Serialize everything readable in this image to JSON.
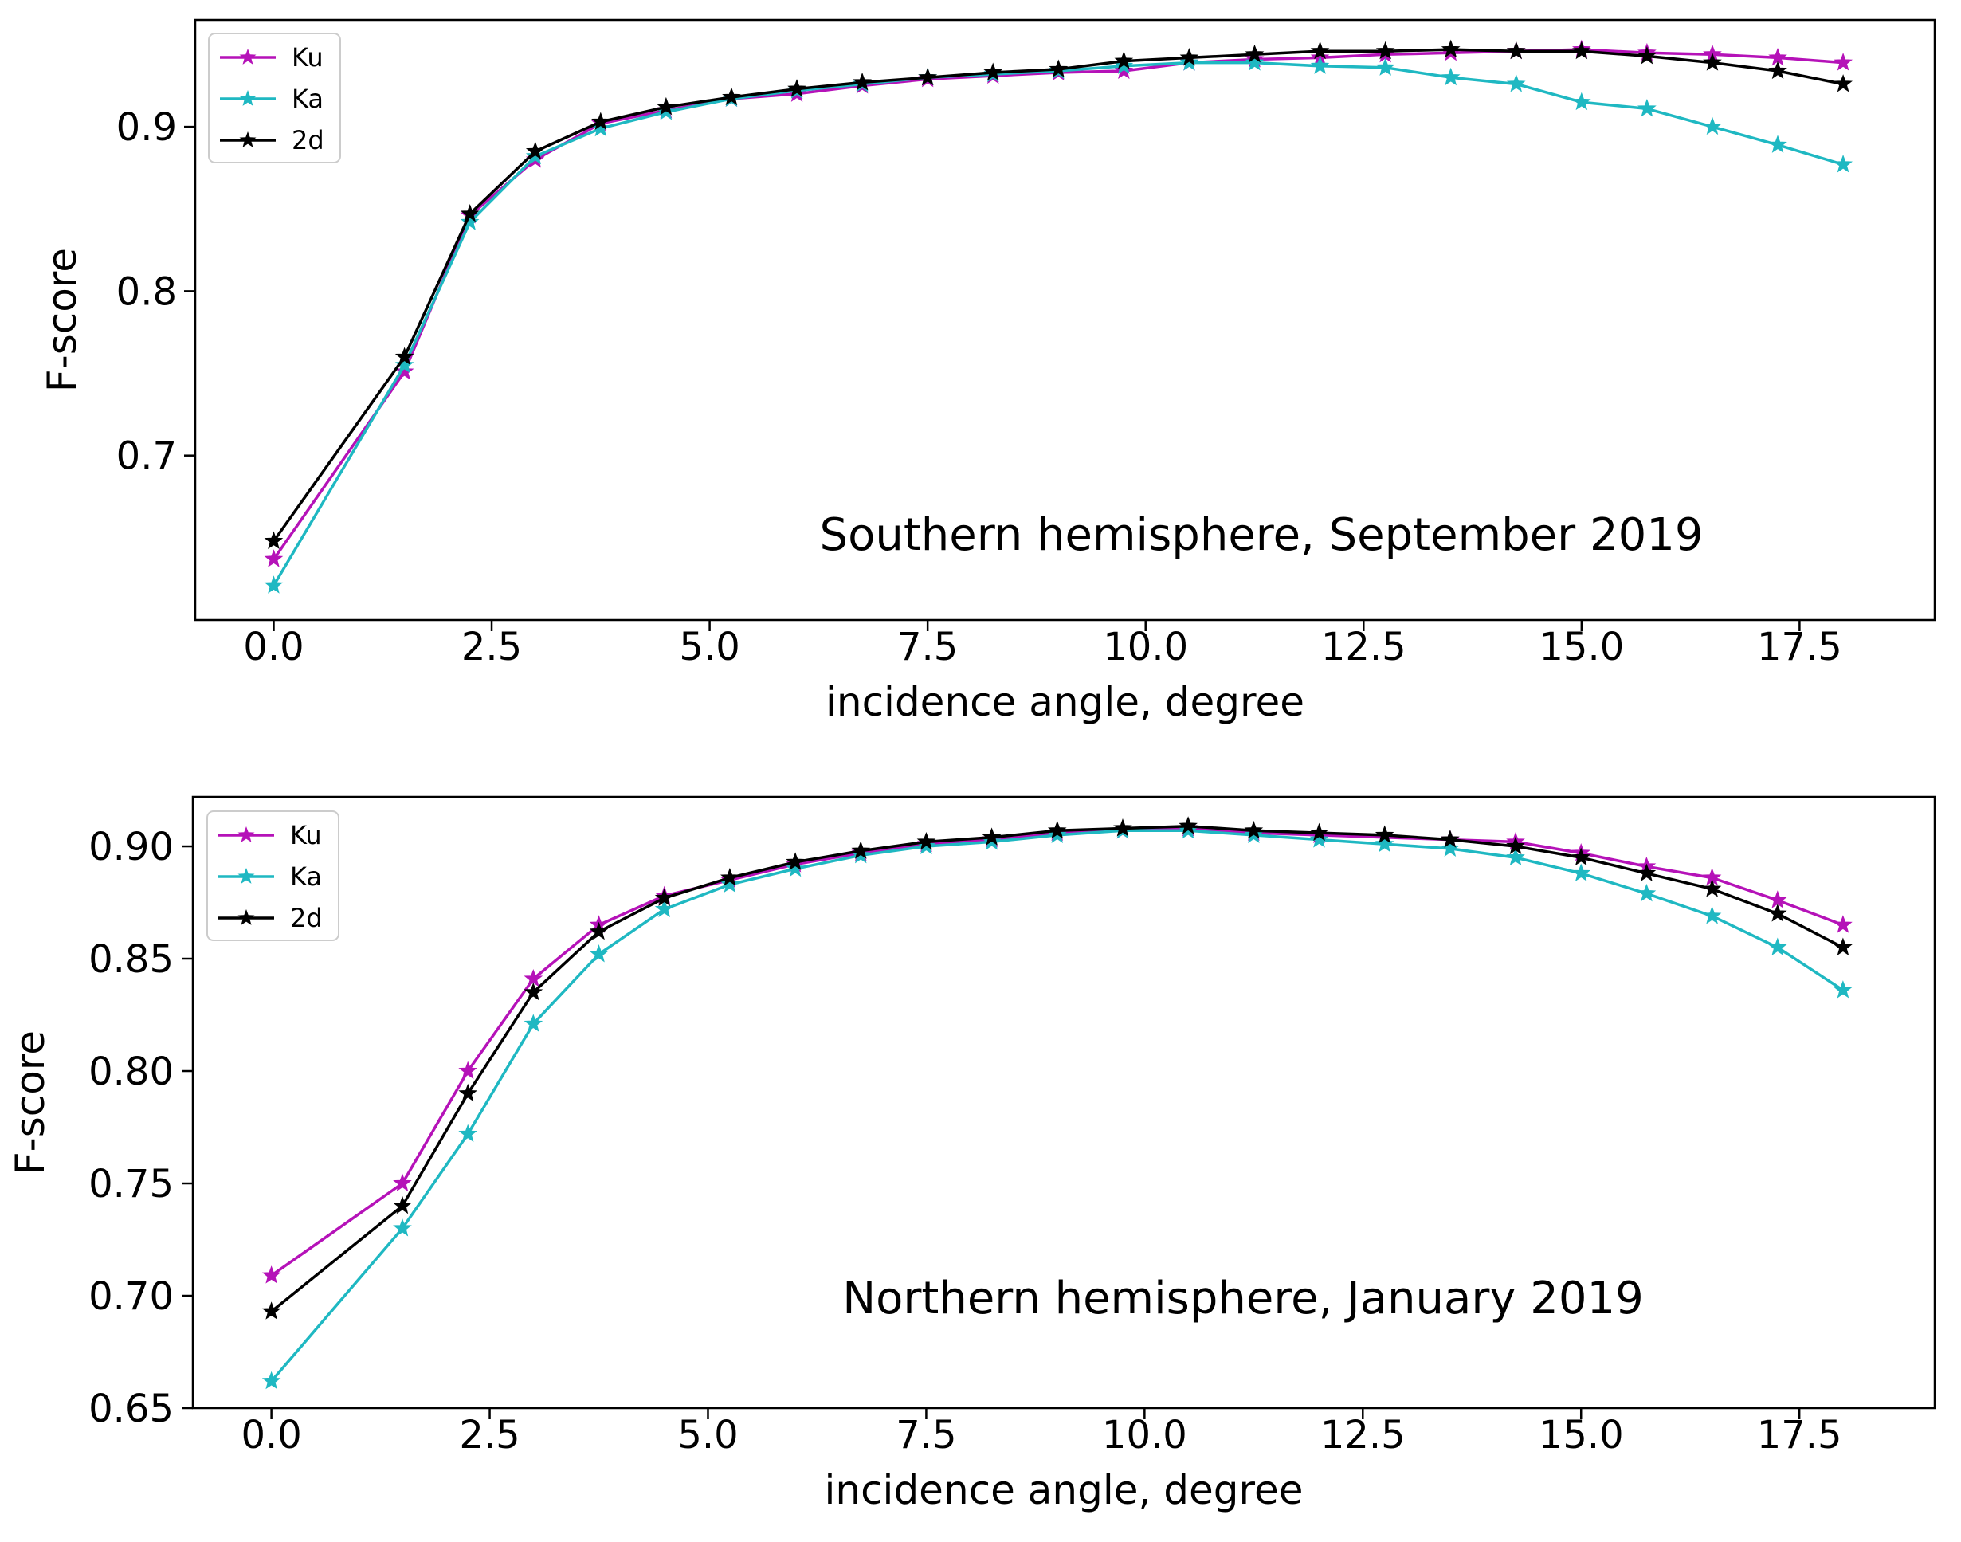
{
  "chart_data": [
    {
      "type": "line",
      "title": "",
      "annotation": "Southern hemisphere, September 2019",
      "xlabel": "incidence angle, degree",
      "ylabel": "F-score",
      "xlim": [
        -0.9,
        19.05
      ],
      "ylim": [
        0.6,
        0.965
      ],
      "xticks": [
        0.0,
        2.5,
        5.0,
        7.5,
        10.0,
        12.5,
        15.0,
        17.5
      ],
      "xtick_labels": [
        "0.0",
        "2.5",
        "5.0",
        "7.5",
        "10.0",
        "12.5",
        "15.0",
        "17.5"
      ],
      "yticks": [
        0.7,
        0.8,
        0.9
      ],
      "ytick_labels": [
        "0.7",
        "0.8",
        "0.9"
      ],
      "legend_position": "upper-left",
      "x": [
        0.0,
        1.5,
        2.25,
        3.0,
        3.75,
        4.5,
        5.25,
        6.0,
        6.75,
        7.5,
        8.25,
        9.0,
        9.75,
        10.5,
        11.25,
        12.0,
        12.75,
        13.5,
        14.25,
        15.0,
        15.75,
        16.5,
        17.25,
        18.0
      ],
      "series": [
        {
          "name": "Ku",
          "color": "#b512b8",
          "values": [
            0.637,
            0.751,
            0.846,
            0.88,
            0.902,
            0.91,
            0.917,
            0.92,
            0.925,
            0.929,
            0.931,
            0.933,
            0.934,
            0.939,
            0.941,
            0.942,
            0.944,
            0.945,
            0.946,
            0.947,
            0.945,
            0.944,
            0.942,
            0.939
          ]
        },
        {
          "name": "Ka",
          "color": "#1fb8c2",
          "values": [
            0.621,
            0.755,
            0.842,
            0.882,
            0.899,
            0.909,
            0.917,
            0.922,
            0.926,
            0.93,
            0.932,
            0.934,
            0.937,
            0.939,
            0.939,
            0.937,
            0.936,
            0.93,
            0.926,
            0.915,
            0.911,
            0.9,
            0.889,
            0.877
          ]
        },
        {
          "name": "2d",
          "color": "#000000",
          "values": [
            0.648,
            0.76,
            0.847,
            0.885,
            0.903,
            0.912,
            0.918,
            0.923,
            0.927,
            0.93,
            0.933,
            0.935,
            0.94,
            0.942,
            0.944,
            0.946,
            0.946,
            0.947,
            0.946,
            0.946,
            0.943,
            0.939,
            0.934,
            0.926
          ]
        }
      ]
    },
    {
      "type": "line",
      "title": "",
      "annotation": "Northern hemisphere, January 2019",
      "xlabel": "incidence angle, degree",
      "ylabel": "F-score",
      "xlim": [
        -0.9,
        19.05
      ],
      "ylim": [
        0.65,
        0.922
      ],
      "xticks": [
        0.0,
        2.5,
        5.0,
        7.5,
        10.0,
        12.5,
        15.0,
        17.5
      ],
      "xtick_labels": [
        "0.0",
        "2.5",
        "5.0",
        "7.5",
        "10.0",
        "12.5",
        "15.0",
        "17.5"
      ],
      "yticks": [
        0.65,
        0.7,
        0.75,
        0.8,
        0.85,
        0.9
      ],
      "ytick_labels": [
        "0.65",
        "0.70",
        "0.75",
        "0.80",
        "0.85",
        "0.90"
      ],
      "legend_position": "upper-left",
      "x": [
        0.0,
        1.5,
        2.25,
        3.0,
        3.75,
        4.5,
        5.25,
        6.0,
        6.75,
        7.5,
        8.25,
        9.0,
        9.75,
        10.5,
        11.25,
        12.0,
        12.75,
        13.5,
        14.25,
        15.0,
        15.75,
        16.5,
        17.25,
        18.0
      ],
      "series": [
        {
          "name": "Ku",
          "color": "#b512b8",
          "values": [
            0.709,
            0.75,
            0.8,
            0.841,
            0.865,
            0.878,
            0.885,
            0.892,
            0.897,
            0.901,
            0.903,
            0.906,
            0.907,
            0.908,
            0.906,
            0.905,
            0.904,
            0.903,
            0.902,
            0.897,
            0.891,
            0.886,
            0.876,
            0.865
          ]
        },
        {
          "name": "Ka",
          "color": "#1fb8c2",
          "values": [
            0.662,
            0.73,
            0.772,
            0.821,
            0.852,
            0.872,
            0.883,
            0.89,
            0.896,
            0.9,
            0.902,
            0.905,
            0.907,
            0.907,
            0.905,
            0.903,
            0.901,
            0.899,
            0.895,
            0.888,
            0.879,
            0.869,
            0.855,
            0.836
          ]
        },
        {
          "name": "2d",
          "color": "#000000",
          "values": [
            0.693,
            0.74,
            0.79,
            0.835,
            0.862,
            0.877,
            0.886,
            0.893,
            0.898,
            0.902,
            0.904,
            0.907,
            0.908,
            0.909,
            0.907,
            0.906,
            0.905,
            0.903,
            0.9,
            0.895,
            0.888,
            0.881,
            0.87,
            0.855
          ]
        }
      ]
    }
  ]
}
